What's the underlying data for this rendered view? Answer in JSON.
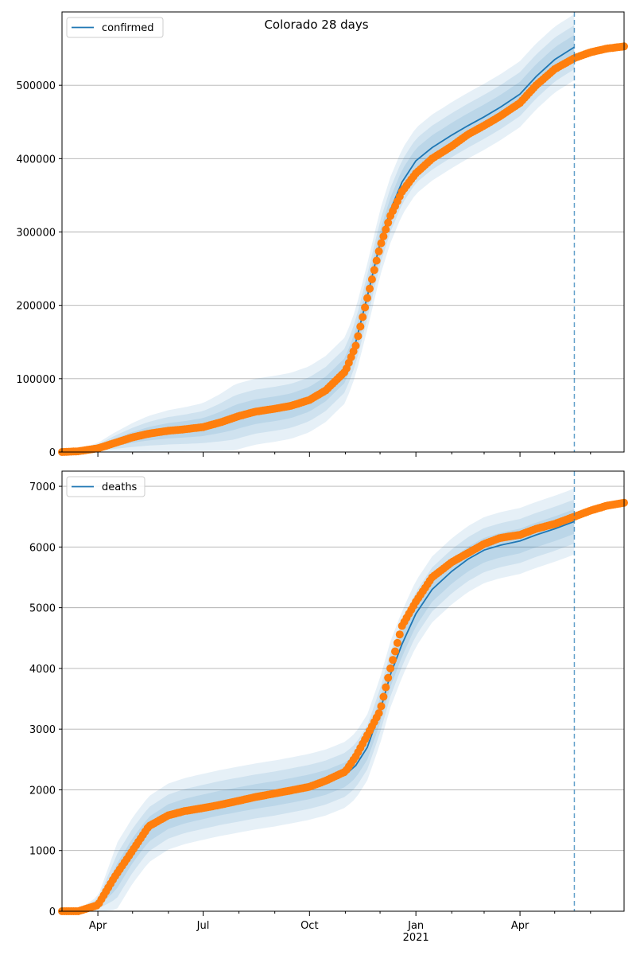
{
  "chart_data": {
    "title": "Colorado 28 days",
    "type": "line",
    "grid": "horizontal",
    "colors": {
      "model": "#1f77b4",
      "observed": "#ff7f0e",
      "band": "#1f77b4",
      "grid": "#b0b0b0"
    },
    "x_range": [
      "2020-03-01",
      "2021-06-30"
    ],
    "x_tick_labels": [
      {
        "date": "2020-04-01",
        "label": "Apr"
      },
      {
        "date": "2020-07-01",
        "label": "Jul"
      },
      {
        "date": "2020-10-01",
        "label": "Oct"
      },
      {
        "date": "2021-01-01",
        "label": "Jan",
        "sublabel": "2021"
      },
      {
        "date": "2021-04-01",
        "label": "Apr"
      }
    ],
    "x_minor_ticks": [
      "2020-05-01",
      "2020-06-01",
      "2020-08-01",
      "2020-09-01",
      "2020-11-01",
      "2020-12-01",
      "2021-02-01",
      "2021-03-01",
      "2021-05-01",
      "2021-06-01"
    ],
    "forecast_start": "2021-05-18",
    "panels": [
      {
        "legend": "confirmed",
        "legend_position": "top-left",
        "ylim": [
          0,
          600000
        ],
        "y_ticks": [
          0,
          100000,
          200000,
          300000,
          400000,
          500000
        ],
        "series": [
          {
            "name": "confirmed",
            "kind": "model",
            "x": [
              "2020-03-01",
              "2020-03-15",
              "2020-04-01",
              "2020-04-15",
              "2020-05-01",
              "2020-05-15",
              "2020-06-01",
              "2020-06-15",
              "2020-07-01",
              "2020-07-15",
              "2020-08-01",
              "2020-08-15",
              "2020-09-01",
              "2020-09-15",
              "2020-10-01",
              "2020-10-15",
              "2020-11-01",
              "2020-11-10",
              "2020-11-20",
              "2020-12-01",
              "2020-12-10",
              "2020-12-20",
              "2021-01-01",
              "2021-01-15",
              "2021-02-01",
              "2021-02-15",
              "2021-03-01",
              "2021-03-15",
              "2021-04-01",
              "2021-04-15",
              "2021-05-01",
              "2021-05-18"
            ],
            "y": [
              0,
              1500,
              6000,
              13000,
              20000,
              25000,
              29000,
              31000,
              34000,
              40000,
              49000,
              55000,
              59000,
              63000,
              72000,
              86000,
              112000,
              150000,
              212000,
              285000,
              330000,
              368000,
              397000,
              415000,
              432000,
              445000,
              457000,
              470000,
              488000,
              512000,
              535000,
              552000
            ]
          },
          {
            "name": "confirmed (observed)",
            "kind": "observed",
            "x": [
              "2020-03-01",
              "2020-03-15",
              "2020-04-01",
              "2020-04-15",
              "2020-05-01",
              "2020-05-15",
              "2020-06-01",
              "2020-06-15",
              "2020-07-01",
              "2020-07-15",
              "2020-08-01",
              "2020-08-15",
              "2020-09-01",
              "2020-09-15",
              "2020-10-01",
              "2020-10-15",
              "2020-11-01",
              "2020-11-10",
              "2020-11-20",
              "2020-12-01",
              "2020-12-10",
              "2020-12-20",
              "2021-01-01",
              "2021-01-15",
              "2021-02-01",
              "2021-02-15",
              "2021-03-01",
              "2021-03-15",
              "2021-04-01",
              "2021-04-15",
              "2021-05-01",
              "2021-05-18",
              "2021-06-01",
              "2021-06-15",
              "2021-06-30"
            ],
            "y": [
              0,
              1000,
              5000,
              12000,
              20000,
              25000,
              29000,
              31000,
              34000,
              40000,
              49000,
              55000,
              59000,
              63000,
              71000,
              84000,
              110000,
              145000,
              210000,
              280000,
              322000,
              355000,
              380000,
              400000,
              417000,
              433000,
              445000,
              458000,
              476000,
              500000,
              522000,
              537000,
              545000,
              550000,
              553000
            ]
          }
        ]
      },
      {
        "legend": "deaths",
        "legend_position": "top-left",
        "ylim": [
          0,
          7250
        ],
        "y_ticks": [
          0,
          1000,
          2000,
          3000,
          4000,
          5000,
          6000,
          7000
        ],
        "series": [
          {
            "name": "deaths",
            "kind": "model",
            "x": [
              "2020-03-01",
              "2020-03-15",
              "2020-04-01",
              "2020-04-15",
              "2020-05-01",
              "2020-05-15",
              "2020-06-01",
              "2020-06-15",
              "2020-07-01",
              "2020-07-15",
              "2020-08-01",
              "2020-08-15",
              "2020-09-01",
              "2020-09-15",
              "2020-10-01",
              "2020-10-15",
              "2020-11-01",
              "2020-11-10",
              "2020-11-20",
              "2020-12-01",
              "2020-12-10",
              "2020-12-20",
              "2021-01-01",
              "2021-01-15",
              "2021-02-01",
              "2021-02-15",
              "2021-03-01",
              "2021-03-15",
              "2021-04-01",
              "2021-04-15",
              "2021-05-01",
              "2021-05-18",
              "2021-06-01",
              "2021-06-15",
              "2021-06-30"
            ],
            "y": [
              0,
              10,
              120,
              500,
              1000,
              1350,
              1560,
              1650,
              1720,
              1780,
              1840,
              1890,
              1940,
              1990,
              2050,
              2120,
              2250,
              2400,
              2700,
              3300,
              3900,
              4400,
              4900,
              5300,
              5600,
              5800,
              5950,
              6030,
              6100,
              6200,
              6300,
              6420,
              6530,
              6600,
              6640
            ]
          },
          {
            "name": "deaths (observed)",
            "kind": "observed",
            "x": [
              "2020-03-01",
              "2020-03-15",
              "2020-04-01",
              "2020-04-15",
              "2020-05-01",
              "2020-05-15",
              "2020-06-01",
              "2020-06-15",
              "2020-07-01",
              "2020-07-15",
              "2020-08-01",
              "2020-08-15",
              "2020-09-01",
              "2020-09-15",
              "2020-10-01",
              "2020-10-15",
              "2020-11-01",
              "2020-11-10",
              "2020-11-20",
              "2020-12-01",
              "2020-12-10",
              "2020-12-20",
              "2021-01-01",
              "2021-01-15",
              "2021-02-01",
              "2021-02-15",
              "2021-03-01",
              "2021-03-15",
              "2021-04-01",
              "2021-04-15",
              "2021-05-01",
              "2021-05-18",
              "2021-06-01",
              "2021-06-15",
              "2021-06-30"
            ],
            "y": [
              0,
              0,
              100,
              550,
              1000,
              1400,
              1580,
              1650,
              1700,
              1750,
              1820,
              1880,
              1940,
              1990,
              2050,
              2150,
              2300,
              2550,
              2900,
              3300,
              4000,
              4700,
              5100,
              5500,
              5750,
              5900,
              6050,
              6150,
              6200,
              6300,
              6380,
              6500,
              6600,
              6680,
              6730
            ]
          }
        ]
      }
    ]
  }
}
